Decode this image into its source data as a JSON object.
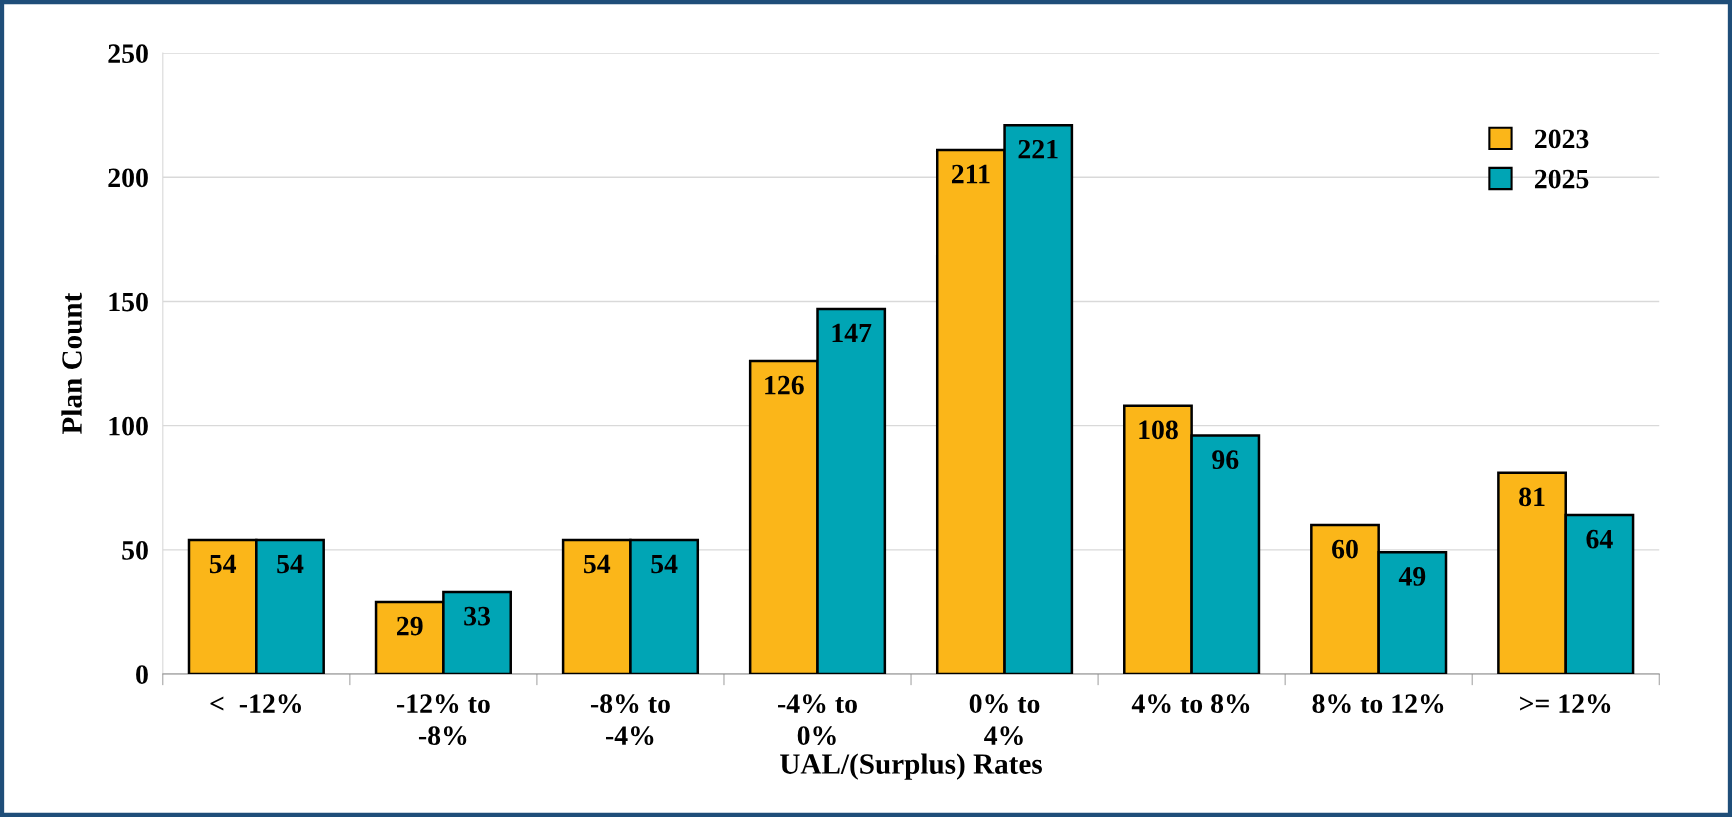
{
  "chart_data": {
    "type": "bar",
    "xlabel": "UAL/(Surplus) Rates",
    "ylabel": "Plan Count",
    "categories": [
      "<  -12%",
      "-12% to\n-8%",
      "-8% to\n-4%",
      "-4% to\n0%",
      "0% to\n4%",
      "4% to 8%",
      "8% to 12%",
      ">= 12%"
    ],
    "series": [
      {
        "name": "2023",
        "color": "#fbb619",
        "values": [
          54,
          29,
          54,
          126,
          211,
          108,
          60,
          81
        ]
      },
      {
        "name": "2025",
        "color": "#00a5b5",
        "values": [
          54,
          33,
          54,
          147,
          221,
          96,
          49,
          64
        ]
      }
    ],
    "ylim": [
      0,
      250
    ],
    "yticks": [
      0,
      50,
      100,
      150,
      200,
      250
    ],
    "grid": "y",
    "legend": "top right",
    "data_labels": true
  }
}
